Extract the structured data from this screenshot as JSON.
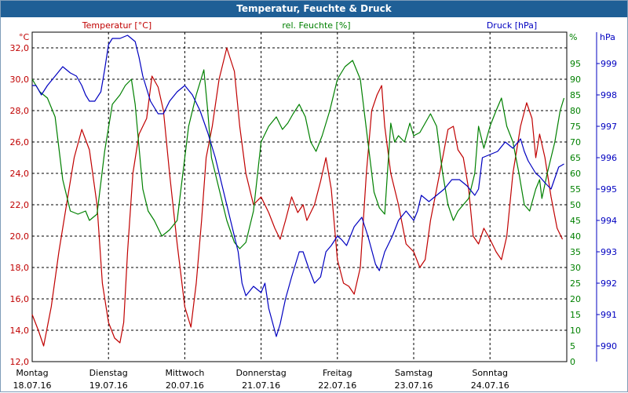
{
  "window": {
    "title": "Temperatur, Feuchte & Druck"
  },
  "chart_data": {
    "type": "line",
    "title": "Temperatur, Feuchte & Druck",
    "grid": true,
    "x": {
      "ticks": [
        {
          "day": "Montag",
          "date": "18.07.16"
        },
        {
          "day": "Dienstag",
          "date": "19.07.16"
        },
        {
          "day": "Mittwoch",
          "date": "20.07.16"
        },
        {
          "day": "Donnerstag",
          "date": "21.07.16"
        },
        {
          "day": "Freitag",
          "date": "22.07.16"
        },
        {
          "day": "Samstag",
          "date": "23.07.16"
        },
        {
          "day": "Sonntag",
          "date": "24.07.16"
        }
      ],
      "range": [
        "18.07.16 00:00",
        "24.07.16 24:00"
      ]
    },
    "axes": {
      "temperature": {
        "label": "Temperatur [°C]",
        "unit": "°C",
        "range": [
          12,
          33
        ],
        "ticks": [
          "12,0",
          "14,0",
          "16,0",
          "18,0",
          "20,0",
          "22,0",
          "24,0",
          "26,0",
          "28,0",
          "30,0",
          "32,0"
        ],
        "color": "#c00000"
      },
      "humidity": {
        "label": "rel. Feuchte [%]",
        "unit": "%",
        "range": [
          0,
          105
        ],
        "ticks": [
          "0",
          "5",
          "10",
          "15",
          "20",
          "25",
          "30",
          "35",
          "40",
          "45",
          "50",
          "55",
          "60",
          "65",
          "70",
          "75",
          "80",
          "85",
          "90",
          "95"
        ],
        "color": "#008000"
      },
      "pressure": {
        "label": "Druck [hPa]",
        "unit": "hPa",
        "range": [
          989.5,
          1000.0
        ],
        "ticks": [
          "990",
          "991",
          "992",
          "993",
          "994",
          "995",
          "996",
          "997",
          "998",
          "999"
        ],
        "color": "#0000c0"
      }
    },
    "series": [
      {
        "name": "Temperatur [°C]",
        "axis": "temperature",
        "color": "#c00000",
        "points": [
          [
            0.0,
            15.0
          ],
          [
            0.08,
            14.0
          ],
          [
            0.15,
            13.0
          ],
          [
            0.25,
            15.5
          ],
          [
            0.35,
            19.0
          ],
          [
            0.45,
            22.0
          ],
          [
            0.55,
            25.0
          ],
          [
            0.65,
            26.8
          ],
          [
            0.75,
            25.5
          ],
          [
            0.85,
            22.0
          ],
          [
            0.92,
            17.0
          ],
          [
            1.0,
            14.5
          ],
          [
            1.08,
            13.5
          ],
          [
            1.15,
            13.2
          ],
          [
            1.2,
            14.5
          ],
          [
            1.25,
            19.0
          ],
          [
            1.32,
            24.0
          ],
          [
            1.4,
            26.5
          ],
          [
            1.5,
            27.5
          ],
          [
            1.57,
            30.2
          ],
          [
            1.65,
            29.5
          ],
          [
            1.72,
            28.0
          ],
          [
            1.8,
            24.0
          ],
          [
            1.9,
            19.5
          ],
          [
            2.0,
            15.5
          ],
          [
            2.08,
            14.2
          ],
          [
            2.15,
            17.0
          ],
          [
            2.22,
            21.0
          ],
          [
            2.28,
            25.0
          ],
          [
            2.36,
            27.0
          ],
          [
            2.45,
            30.0
          ],
          [
            2.55,
            32.0
          ],
          [
            2.65,
            30.5
          ],
          [
            2.72,
            27.0
          ],
          [
            2.8,
            24.0
          ],
          [
            2.9,
            22.0
          ],
          [
            3.0,
            22.5
          ],
          [
            3.1,
            21.5
          ],
          [
            3.18,
            20.5
          ],
          [
            3.25,
            19.8
          ],
          [
            3.32,
            21.0
          ],
          [
            3.4,
            22.5
          ],
          [
            3.48,
            21.5
          ],
          [
            3.55,
            22.0
          ],
          [
            3.6,
            21.0
          ],
          [
            3.7,
            22.0
          ],
          [
            3.78,
            23.5
          ],
          [
            3.85,
            25.0
          ],
          [
            3.92,
            23.0
          ],
          [
            4.0,
            18.5
          ],
          [
            4.08,
            17.0
          ],
          [
            4.15,
            16.8
          ],
          [
            4.22,
            16.3
          ],
          [
            4.3,
            18.0
          ],
          [
            4.38,
            24.0
          ],
          [
            4.45,
            28.0
          ],
          [
            4.52,
            29.0
          ],
          [
            4.58,
            29.6
          ],
          [
            4.62,
            27.0
          ],
          [
            4.7,
            24.0
          ],
          [
            4.8,
            22.0
          ],
          [
            4.9,
            19.5
          ],
          [
            5.0,
            19.0
          ],
          [
            5.08,
            18.0
          ],
          [
            5.15,
            18.5
          ],
          [
            5.22,
            21.0
          ],
          [
            5.3,
            23.0
          ],
          [
            5.38,
            25.0
          ],
          [
            5.45,
            26.8
          ],
          [
            5.52,
            27.0
          ],
          [
            5.58,
            25.5
          ],
          [
            5.65,
            25.0
          ],
          [
            5.72,
            23.0
          ],
          [
            5.78,
            20.0
          ],
          [
            5.85,
            19.5
          ],
          [
            5.92,
            20.5
          ],
          [
            6.0,
            19.8
          ],
          [
            6.08,
            19.0
          ],
          [
            6.15,
            18.5
          ],
          [
            6.22,
            20.0
          ],
          [
            6.3,
            24.0
          ],
          [
            6.4,
            27.0
          ],
          [
            6.48,
            28.5
          ],
          [
            6.55,
            27.5
          ],
          [
            6.6,
            25.0
          ],
          [
            6.65,
            26.5
          ],
          [
            6.72,
            25.0
          ],
          [
            6.8,
            22.5
          ],
          [
            6.88,
            20.5
          ],
          [
            6.95,
            19.8
          ]
        ]
      },
      {
        "name": "rel. Feuchte [%]",
        "axis": "humidity",
        "color": "#008000",
        "points": [
          [
            0.0,
            90
          ],
          [
            0.1,
            86
          ],
          [
            0.2,
            84
          ],
          [
            0.3,
            78
          ],
          [
            0.4,
            58
          ],
          [
            0.5,
            48
          ],
          [
            0.6,
            47
          ],
          [
            0.7,
            48
          ],
          [
            0.75,
            45
          ],
          [
            0.85,
            47
          ],
          [
            0.95,
            67
          ],
          [
            1.05,
            82
          ],
          [
            1.15,
            85
          ],
          [
            1.22,
            88
          ],
          [
            1.3,
            90
          ],
          [
            1.35,
            82
          ],
          [
            1.45,
            55
          ],
          [
            1.52,
            48
          ],
          [
            1.6,
            45
          ],
          [
            1.7,
            40
          ],
          [
            1.8,
            42
          ],
          [
            1.9,
            45
          ],
          [
            1.95,
            55
          ],
          [
            2.05,
            75
          ],
          [
            2.15,
            85
          ],
          [
            2.25,
            93
          ],
          [
            2.3,
            80
          ],
          [
            2.35,
            65
          ],
          [
            2.45,
            55
          ],
          [
            2.55,
            45
          ],
          [
            2.65,
            38
          ],
          [
            2.72,
            36
          ],
          [
            2.8,
            38
          ],
          [
            2.9,
            48
          ],
          [
            3.0,
            70
          ],
          [
            3.1,
            75
          ],
          [
            3.2,
            78
          ],
          [
            3.28,
            74
          ],
          [
            3.35,
            76
          ],
          [
            3.42,
            79
          ],
          [
            3.5,
            82
          ],
          [
            3.58,
            78
          ],
          [
            3.65,
            70
          ],
          [
            3.72,
            67
          ],
          [
            3.8,
            72
          ],
          [
            3.9,
            80
          ],
          [
            4.0,
            90
          ],
          [
            4.1,
            94
          ],
          [
            4.2,
            96
          ],
          [
            4.3,
            90
          ],
          [
            4.4,
            70
          ],
          [
            4.48,
            54
          ],
          [
            4.55,
            49
          ],
          [
            4.62,
            47
          ],
          [
            4.65,
            58
          ],
          [
            4.7,
            76
          ],
          [
            4.75,
            70
          ],
          [
            4.8,
            72
          ],
          [
            4.88,
            70
          ],
          [
            4.95,
            76
          ],
          [
            5.0,
            72
          ],
          [
            5.08,
            73
          ],
          [
            5.15,
            76
          ],
          [
            5.22,
            79
          ],
          [
            5.3,
            75
          ],
          [
            5.38,
            60
          ],
          [
            5.45,
            50
          ],
          [
            5.52,
            45
          ],
          [
            5.58,
            48
          ],
          [
            5.65,
            50
          ],
          [
            5.72,
            52
          ],
          [
            5.8,
            60
          ],
          [
            5.85,
            75
          ],
          [
            5.92,
            68
          ],
          [
            6.0,
            75
          ],
          [
            6.08,
            80
          ],
          [
            6.15,
            84
          ],
          [
            6.22,
            75
          ],
          [
            6.3,
            70
          ],
          [
            6.38,
            60
          ],
          [
            6.45,
            50
          ],
          [
            6.52,
            48
          ],
          [
            6.6,
            55
          ],
          [
            6.65,
            58
          ],
          [
            6.68,
            52
          ],
          [
            6.75,
            60
          ],
          [
            6.85,
            70
          ],
          [
            6.92,
            80
          ],
          [
            6.97,
            84
          ]
        ]
      },
      {
        "name": "Druck [hPa]",
        "axis": "pressure",
        "color": "#0000c0",
        "points": [
          [
            0.0,
            998.3
          ],
          [
            0.05,
            998.3
          ],
          [
            0.12,
            998.0
          ],
          [
            0.2,
            998.3
          ],
          [
            0.3,
            998.6
          ],
          [
            0.4,
            998.9
          ],
          [
            0.5,
            998.7
          ],
          [
            0.58,
            998.6
          ],
          [
            0.65,
            998.3
          ],
          [
            0.7,
            998.0
          ],
          [
            0.75,
            997.8
          ],
          [
            0.82,
            997.8
          ],
          [
            0.9,
            998.1
          ],
          [
            0.95,
            998.8
          ],
          [
            1.0,
            999.6
          ],
          [
            1.05,
            999.8
          ],
          [
            1.15,
            999.8
          ],
          [
            1.25,
            999.9
          ],
          [
            1.35,
            999.7
          ],
          [
            1.4,
            999.2
          ],
          [
            1.45,
            998.6
          ],
          [
            1.55,
            997.8
          ],
          [
            1.65,
            997.4
          ],
          [
            1.72,
            997.4
          ],
          [
            1.8,
            997.8
          ],
          [
            1.9,
            998.1
          ],
          [
            2.0,
            998.3
          ],
          [
            2.1,
            998.0
          ],
          [
            2.2,
            997.5
          ],
          [
            2.3,
            996.8
          ],
          [
            2.4,
            996.0
          ],
          [
            2.5,
            995.0
          ],
          [
            2.6,
            994.0
          ],
          [
            2.7,
            993.0
          ],
          [
            2.75,
            992.0
          ],
          [
            2.8,
            991.6
          ],
          [
            2.9,
            991.9
          ],
          [
            3.0,
            991.7
          ],
          [
            3.05,
            992.0
          ],
          [
            3.1,
            991.2
          ],
          [
            3.2,
            990.3
          ],
          [
            3.25,
            990.7
          ],
          [
            3.32,
            991.5
          ],
          [
            3.4,
            992.2
          ],
          [
            3.5,
            993.0
          ],
          [
            3.55,
            993.0
          ],
          [
            3.62,
            992.5
          ],
          [
            3.7,
            992.0
          ],
          [
            3.78,
            992.2
          ],
          [
            3.85,
            993.0
          ],
          [
            3.92,
            993.2
          ],
          [
            4.0,
            993.5
          ],
          [
            4.05,
            993.4
          ],
          [
            4.12,
            993.2
          ],
          [
            4.22,
            993.8
          ],
          [
            4.32,
            994.1
          ],
          [
            4.4,
            993.5
          ],
          [
            4.5,
            992.6
          ],
          [
            4.55,
            992.4
          ],
          [
            4.62,
            993.0
          ],
          [
            4.72,
            993.5
          ],
          [
            4.8,
            994.0
          ],
          [
            4.9,
            994.3
          ],
          [
            5.0,
            994.0
          ],
          [
            5.05,
            994.3
          ],
          [
            5.1,
            994.8
          ],
          [
            5.2,
            994.6
          ],
          [
            5.3,
            994.8
          ],
          [
            5.4,
            995.0
          ],
          [
            5.5,
            995.3
          ],
          [
            5.6,
            995.3
          ],
          [
            5.7,
            995.1
          ],
          [
            5.8,
            994.8
          ],
          [
            5.85,
            995.0
          ],
          [
            5.9,
            996.0
          ],
          [
            6.0,
            996.1
          ],
          [
            6.1,
            996.2
          ],
          [
            6.2,
            996.5
          ],
          [
            6.3,
            996.3
          ],
          [
            6.4,
            996.6
          ],
          [
            6.45,
            996.2
          ],
          [
            6.5,
            995.9
          ],
          [
            6.6,
            995.5
          ],
          [
            6.65,
            995.4
          ],
          [
            6.72,
            995.2
          ],
          [
            6.8,
            995.0
          ],
          [
            6.9,
            995.7
          ],
          [
            6.97,
            995.8
          ]
        ]
      }
    ]
  }
}
